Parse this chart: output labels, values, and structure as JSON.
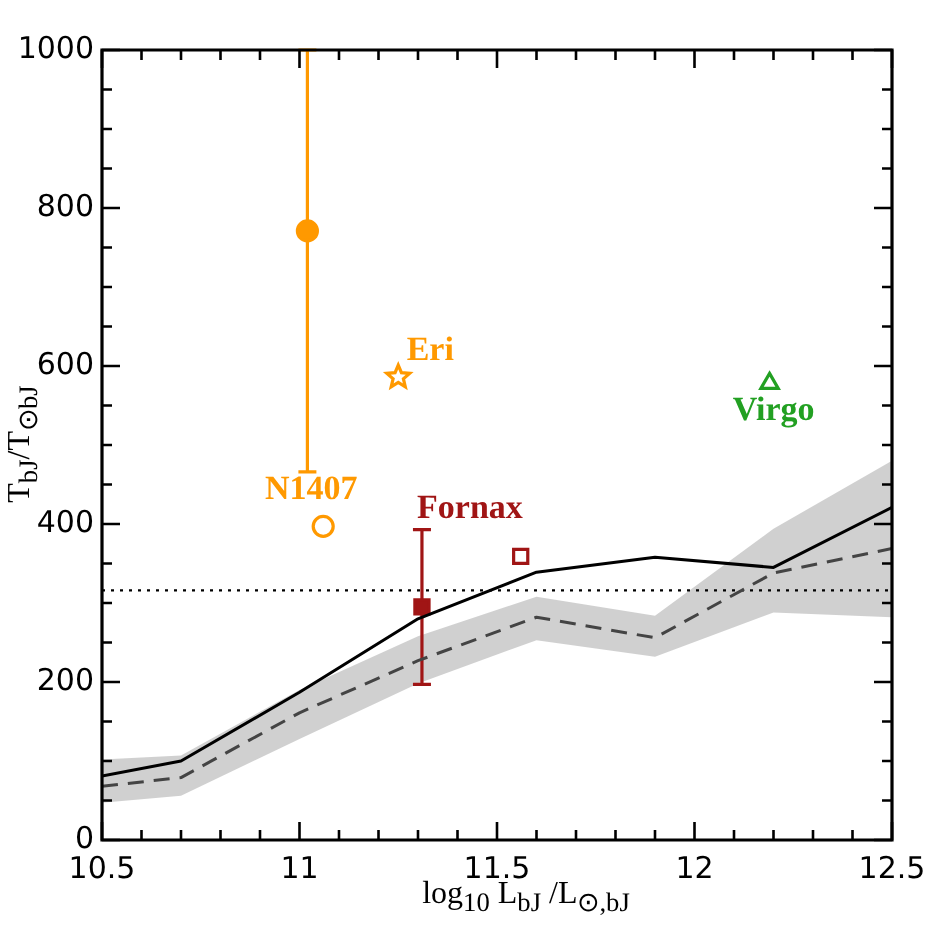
{
  "chart_data": {
    "type": "line",
    "xlabel": "log$_{10}$ L$_{bJ}$ /L$_{⊙,bJ}$",
    "ylabel": "T$_{bJ}$/T$_{⊙bJ}$",
    "xlim": [
      10.5,
      12.5
    ],
    "xticks": [
      10.5,
      {
        "value": 10.6,
        "label": null
      },
      {
        "value": 10.7,
        "label": null
      },
      {
        "value": 10.8,
        "label": null
      },
      {
        "value": 10.9,
        "label": null
      },
      11,
      {
        "value": 11.1,
        "label": null
      },
      {
        "value": 11.2,
        "label": null
      },
      {
        "value": 11.3,
        "label": null
      },
      {
        "value": 11.4,
        "label": null
      },
      11.5,
      {
        "value": 11.6,
        "label": null
      },
      {
        "value": 11.7,
        "label": null
      },
      {
        "value": 11.8,
        "label": null
      },
      {
        "value": 11.9,
        "label": null
      },
      12,
      {
        "value": 12.1,
        "label": null
      },
      {
        "value": 12.2,
        "label": null
      },
      {
        "value": 12.3,
        "label": null
      },
      {
        "value": 12.4,
        "label": null
      },
      12.5
    ],
    "ylim": [
      0,
      1000
    ],
    "yticks": [
      0,
      {
        "value": 50,
        "label": null
      },
      {
        "value": 100,
        "label": null
      },
      {
        "value": 150,
        "label": null
      },
      200,
      {
        "value": 250,
        "label": null
      },
      {
        "value": 300,
        "label": null
      },
      {
        "value": 350,
        "label": null
      },
      400,
      {
        "value": 450,
        "label": null
      },
      {
        "value": 500,
        "label": null
      },
      {
        "value": 550,
        "label": null
      },
      600,
      {
        "value": 650,
        "label": null
      },
      {
        "value": 700,
        "label": null
      },
      {
        "value": 750,
        "label": null
      },
      800,
      {
        "value": 850,
        "label": null
      },
      {
        "value": 900,
        "label": null
      },
      {
        "value": 950,
        "label": null
      },
      1000
    ],
    "grid": false,
    "legend": false,
    "ref_lines": [
      {
        "axis": "y",
        "value": 316,
        "color": "#000000",
        "line_style": "dotted"
      }
    ],
    "series": [
      {
        "color": "#000000",
        "line_style": "solid",
        "marker": "none",
        "x": [
          10.5,
          10.7,
          11.0,
          11.3,
          11.6,
          11.9,
          12.2,
          12.5
        ],
        "values": [
          81,
          100,
          187,
          280,
          339,
          358,
          345,
          421
        ]
      },
      {
        "color": "#444444",
        "line_style": "dashed",
        "marker": "none",
        "x": [
          10.5,
          10.7,
          11.0,
          11.3,
          11.6,
          11.9,
          12.2,
          12.5
        ],
        "values": [
          68,
          79,
          161,
          227,
          282,
          256,
          338,
          369
        ],
        "lower": [
          47,
          56,
          128,
          198,
          253,
          232,
          288,
          282
        ],
        "upper": [
          102,
          107,
          190,
          258,
          308,
          284,
          394,
          480
        ]
      },
      {
        "type": "scatter",
        "name": "N1407",
        "color": "#ff9900",
        "marker": "circle",
        "x": [
          11.02,
          11.06
        ],
        "values": [
          771,
          397
        ],
        "errors": [
          [
            466,
            1000
          ],
          null
        ]
      },
      {
        "type": "scatter",
        "name": "Eri",
        "color": "#ff9900",
        "marker": "star",
        "x": [
          11.25
        ],
        "values": [
          586
        ]
      },
      {
        "type": "scatter",
        "name": "Fornax",
        "color": "#a01515",
        "marker": "square",
        "x": [
          11.31,
          11.56
        ],
        "values": [
          295,
          359
        ],
        "errors": [
          [
            197,
            393
          ],
          null
        ]
      },
      {
        "type": "scatter",
        "name": "Virgo",
        "color": "#22a022",
        "marker": "triangle",
        "x": [
          12.19
        ],
        "values": [
          578
        ]
      }
    ]
  }
}
